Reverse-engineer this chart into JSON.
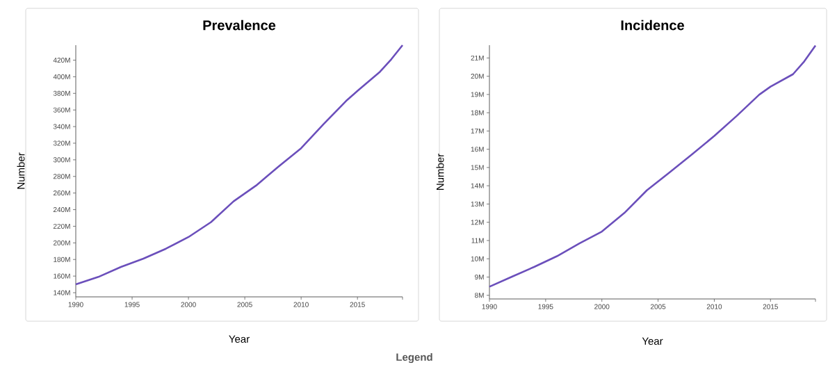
{
  "chart_data": [
    {
      "type": "line",
      "title": "Prevalence",
      "xlabel": "Year",
      "ylabel": "Number",
      "x": [
        1990,
        1992,
        1994,
        1996,
        1998,
        2000,
        2002,
        2004,
        2006,
        2008,
        2010,
        2012,
        2014,
        2015,
        2017,
        2018,
        2019
      ],
      "series": [
        {
          "color": "#6b4fbb",
          "values": [
            150,
            159,
            171,
            181,
            193,
            207,
            225,
            250,
            269,
            292,
            314,
            343,
            371,
            383,
            406,
            421,
            438
          ]
        }
      ],
      "xlim": [
        1990,
        2019
      ],
      "ylim": [
        135,
        438
      ],
      "xticks": [
        1990,
        1995,
        2000,
        2005,
        2010,
        2015,
        {
          "value": 2019,
          "label": null
        }
      ],
      "yticks": [
        {
          "value": 140,
          "label": "140M"
        },
        {
          "value": 160,
          "label": "160M"
        },
        {
          "value": 180,
          "label": "180M"
        },
        {
          "value": 200,
          "label": "200M"
        },
        {
          "value": 220,
          "label": "220M"
        },
        {
          "value": 240,
          "label": "240M"
        },
        {
          "value": 260,
          "label": "260M"
        },
        {
          "value": 280,
          "label": "280M"
        },
        {
          "value": 300,
          "label": "300M"
        },
        {
          "value": 320,
          "label": "320M"
        },
        {
          "value": 340,
          "label": "340M"
        },
        {
          "value": 360,
          "label": "360M"
        },
        {
          "value": 380,
          "label": "380M"
        },
        {
          "value": 400,
          "label": "400M"
        },
        {
          "value": 420,
          "label": "420M"
        }
      ],
      "annotations": [
        "Legend"
      ]
    },
    {
      "type": "line",
      "title": "Incidence",
      "xlabel": "Year",
      "ylabel": "Number",
      "x": [
        1990,
        1992,
        1994,
        1996,
        1998,
        2000,
        2002,
        2004,
        2006,
        2008,
        2010,
        2012,
        2014,
        2015,
        2017,
        2018,
        2019
      ],
      "series": [
        {
          "color": "#6b4fbb",
          "values": [
            8.47,
            9.02,
            9.56,
            10.14,
            10.84,
            11.49,
            12.51,
            13.75,
            14.72,
            15.71,
            16.73,
            17.83,
            18.99,
            19.43,
            20.11,
            20.81,
            21.68
          ]
        }
      ],
      "xlim": [
        1990,
        2019
      ],
      "ylim": [
        7.8,
        21.7
      ],
      "xticks": [
        1990,
        1995,
        2000,
        2005,
        2010,
        2015,
        {
          "value": 2019,
          "label": null
        }
      ],
      "yticks": [
        {
          "value": 8,
          "label": "8M"
        },
        {
          "value": 9,
          "label": "9M"
        },
        {
          "value": 10,
          "label": "10M"
        },
        {
          "value": 11,
          "label": "11M"
        },
        {
          "value": 12,
          "label": "12M"
        },
        {
          "value": 13,
          "label": "13M"
        },
        {
          "value": 14,
          "label": "14M"
        },
        {
          "value": 15,
          "label": "15M"
        },
        {
          "value": 16,
          "label": "16M"
        },
        {
          "value": 17,
          "label": "17M"
        },
        {
          "value": 18,
          "label": "18M"
        },
        {
          "value": 19,
          "label": "19M"
        },
        {
          "value": 20,
          "label": "20M"
        },
        {
          "value": 21,
          "label": "21M"
        }
      ]
    }
  ]
}
